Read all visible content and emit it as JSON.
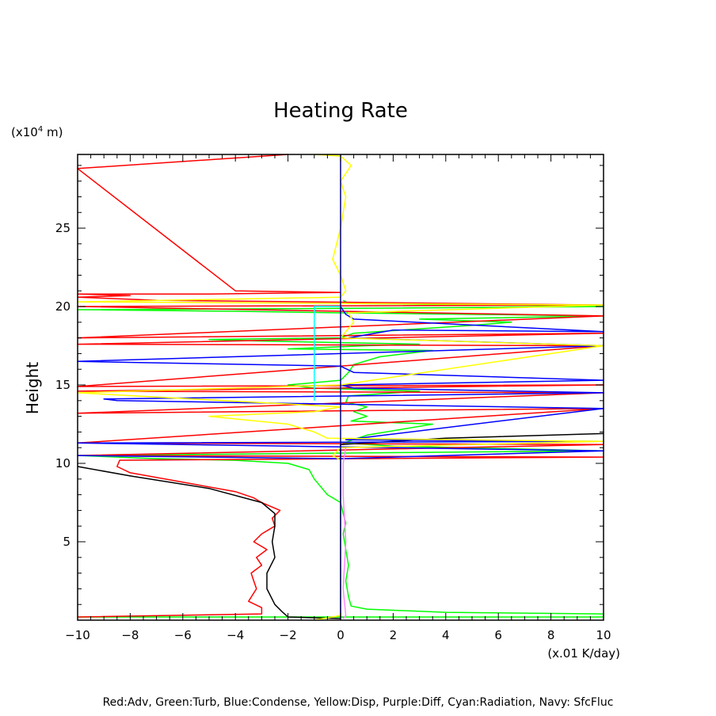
{
  "chart_data": {
    "type": "line",
    "title": "Heating Rate",
    "xlabel": "(x.01 K/day)",
    "ylabel": "Height",
    "y_unit": "(x10^4 m)",
    "y_unit_base": "(x10",
    "y_unit_exp": "4",
    "y_unit_tail": " m)",
    "xlim": [
      -10,
      10
    ],
    "ylim": [
      0,
      29.7
    ],
    "x_ticks": [
      -10,
      -8,
      -6,
      -4,
      -2,
      0,
      2,
      4,
      6,
      8,
      10
    ],
    "x_tick_labels": [
      "−10",
      "−8",
      "−6",
      "−4",
      "−2",
      "0",
      "2",
      "4",
      "6",
      "8",
      "10"
    ],
    "y_ticks": [
      5,
      10,
      15,
      20,
      25
    ],
    "y_tick_labels": [
      "5",
      "10",
      "15",
      "20",
      "25"
    ],
    "legend_text": "Red:Adv, Green:Turb, Blue:Condense, Yellow:Disp, Purple:Diff, Cyan:Radiation, Navy: SfcFluc",
    "series": [
      {
        "color": "#00ff00",
        "points": [
          [
            -10,
            0.2
          ],
          [
            10,
            0.2
          ],
          [
            10,
            0.4
          ],
          [
            4,
            0.5
          ],
          [
            1,
            0.7
          ],
          [
            0.4,
            0.9
          ],
          [
            0.3,
            1.5
          ],
          [
            0.2,
            2.5
          ],
          [
            0.3,
            3.5
          ],
          [
            0.2,
            4.5
          ],
          [
            0.1,
            5.5
          ],
          [
            0.2,
            6.2
          ],
          [
            0.1,
            6.8
          ],
          [
            0,
            7.5
          ],
          [
            -0.5,
            8
          ],
          [
            -1,
            9
          ],
          [
            -1.2,
            9.6
          ],
          [
            -2,
            10
          ],
          [
            -4,
            10.2
          ],
          [
            -7,
            10.3
          ],
          [
            -10,
            10.5
          ],
          [
            3,
            10.7
          ],
          [
            10,
            10.8
          ],
          [
            2,
            11.1
          ],
          [
            0.1,
            11.3
          ],
          [
            1,
            11.8
          ],
          [
            3.5,
            12.5
          ],
          [
            0.4,
            12.7
          ],
          [
            1,
            13
          ],
          [
            0.5,
            13.3
          ],
          [
            1,
            13.6
          ],
          [
            0.2,
            13.9
          ],
          [
            0.3,
            14.3
          ],
          [
            3,
            14.6
          ],
          [
            -1,
            14.8
          ],
          [
            -2,
            15
          ],
          [
            0,
            15.3
          ],
          [
            0.3,
            15.8
          ],
          [
            0.5,
            16.3
          ],
          [
            1.5,
            16.8
          ],
          [
            3.5,
            17.2
          ],
          [
            -2,
            17.3
          ],
          [
            1,
            17.5
          ],
          [
            3,
            17.6
          ],
          [
            -3,
            17.8
          ],
          [
            -5,
            17.9
          ],
          [
            0,
            18
          ],
          [
            0.5,
            18.3
          ],
          [
            5,
            18.8
          ],
          [
            6.5,
            19
          ],
          [
            3,
            19.2
          ],
          [
            10,
            19.4
          ],
          [
            0,
            19.6
          ],
          [
            -4,
            19.7
          ],
          [
            -10,
            19.8
          ],
          [
            2,
            19.9
          ],
          [
            10,
            20
          ],
          [
            0.3,
            20.2
          ],
          [
            0.1,
            20.4
          ]
        ]
      },
      {
        "color": "#ff0000",
        "points": [
          [
            -10,
            0.2
          ],
          [
            -3,
            0.4
          ],
          [
            -3,
            0.8
          ],
          [
            -3.5,
            1.2
          ],
          [
            -3.2,
            2
          ],
          [
            -3.3,
            2.5
          ],
          [
            -3.4,
            3
          ],
          [
            -3,
            3.5
          ],
          [
            -3.2,
            4
          ],
          [
            -2.8,
            4.5
          ],
          [
            -3.3,
            5
          ],
          [
            -3,
            5.5
          ],
          [
            -2.5,
            6
          ],
          [
            -2.6,
            6.5
          ],
          [
            -2.3,
            7
          ],
          [
            -3,
            7.5
          ],
          [
            -3.3,
            7.8
          ],
          [
            -4,
            8.2
          ],
          [
            -6,
            8.8
          ],
          [
            -8,
            9.4
          ],
          [
            -8.5,
            9.8
          ],
          [
            -8.4,
            10.2
          ],
          [
            10,
            10.4
          ],
          [
            -10,
            10.5
          ],
          [
            10,
            11.2
          ],
          [
            -10,
            11.3
          ],
          [
            10,
            13.5
          ],
          [
            -10,
            13.2
          ],
          [
            10,
            14.5
          ],
          [
            -10,
            14.6
          ],
          [
            10,
            15
          ],
          [
            -10,
            14.9
          ],
          [
            10,
            17.5
          ],
          [
            -10,
            17.6
          ],
          [
            10,
            18.3
          ],
          [
            -10,
            18
          ],
          [
            10,
            19.4
          ],
          [
            -10,
            20
          ],
          [
            10,
            20.1
          ],
          [
            -7,
            20.4
          ],
          [
            -10,
            20.6
          ],
          [
            -8,
            20.7
          ],
          [
            -10,
            20.8
          ],
          [
            -5,
            20.8
          ],
          [
            0,
            20.9
          ],
          [
            -4,
            21
          ],
          [
            -10,
            28.8
          ],
          [
            -2,
            29.7
          ]
        ]
      },
      {
        "color": "#000000",
        "points": [
          [
            -10,
            9.8
          ],
          [
            -8,
            9.2
          ],
          [
            -5,
            8.4
          ],
          [
            -3,
            7.5
          ],
          [
            -2.5,
            6.8
          ],
          [
            -2.5,
            6
          ],
          [
            -2.6,
            5
          ],
          [
            -2.5,
            4
          ],
          [
            -2.8,
            3
          ],
          [
            -2.8,
            2
          ],
          [
            -2.5,
            1
          ],
          [
            -2.2,
            0.5
          ],
          [
            -2,
            0.2
          ],
          [
            0,
            0.1
          ],
          [
            0,
            11.2
          ],
          [
            4,
            11.6
          ],
          [
            10,
            11.9
          ]
        ]
      },
      {
        "color": "#0000ff",
        "points": [
          [
            -10,
            10.5
          ],
          [
            0,
            10.3
          ],
          [
            10,
            10.8
          ],
          [
            -10,
            11.3
          ],
          [
            10,
            11.4
          ],
          [
            0.2,
            11.5
          ],
          [
            10,
            13.5
          ],
          [
            -8.5,
            14
          ],
          [
            -9,
            14.1
          ],
          [
            10,
            14.5
          ],
          [
            0.5,
            14.8
          ],
          [
            0,
            15
          ],
          [
            10,
            15.3
          ],
          [
            0.5,
            15.8
          ],
          [
            0,
            16.2
          ],
          [
            -10,
            16.5
          ],
          [
            10,
            17.5
          ],
          [
            0.3,
            18
          ],
          [
            2,
            18.5
          ],
          [
            10,
            18.4
          ],
          [
            0.5,
            19.2
          ],
          [
            0.2,
            19.5
          ],
          [
            0,
            20
          ]
        ]
      },
      {
        "color": "#ffff00",
        "points": [
          [
            -1,
            0
          ],
          [
            0,
            0.3
          ],
          [
            0,
            8
          ],
          [
            0,
            10.2
          ],
          [
            -0.3,
            10.5
          ],
          [
            0,
            11
          ],
          [
            10,
            11.4
          ],
          [
            -0.5,
            11.6
          ],
          [
            -1,
            12
          ],
          [
            -2,
            12.5
          ],
          [
            -5,
            13
          ],
          [
            -1,
            13.3
          ],
          [
            0,
            13.6
          ],
          [
            -10,
            14.5
          ],
          [
            0,
            15
          ],
          [
            10,
            17.5
          ],
          [
            0,
            18
          ],
          [
            0.5,
            19
          ],
          [
            0.3,
            19.6
          ],
          [
            10,
            20.1
          ],
          [
            -10,
            20.3
          ],
          [
            0,
            20.6
          ],
          [
            0.2,
            21
          ],
          [
            0,
            22
          ],
          [
            -0.3,
            23
          ],
          [
            0,
            25
          ],
          [
            0.2,
            27
          ],
          [
            0,
            28
          ],
          [
            0.4,
            29
          ],
          [
            0,
            29.6
          ],
          [
            -1,
            29.7
          ]
        ]
      },
      {
        "color": "#ff88ff",
        "points": [
          [
            0.1,
            0.1
          ],
          [
            0.2,
            0.3
          ],
          [
            0.1,
            2
          ],
          [
            0.2,
            5
          ],
          [
            0.1,
            8
          ],
          [
            0.1,
            10
          ],
          [
            0.2,
            11
          ]
        ]
      },
      {
        "color": "#00ffff",
        "points": [
          [
            -1,
            14
          ],
          [
            -1,
            20
          ],
          [
            0,
            20
          ]
        ]
      },
      {
        "color": "#000080",
        "points": [
          [
            0,
            0
          ],
          [
            0,
            29.7
          ]
        ]
      }
    ]
  }
}
